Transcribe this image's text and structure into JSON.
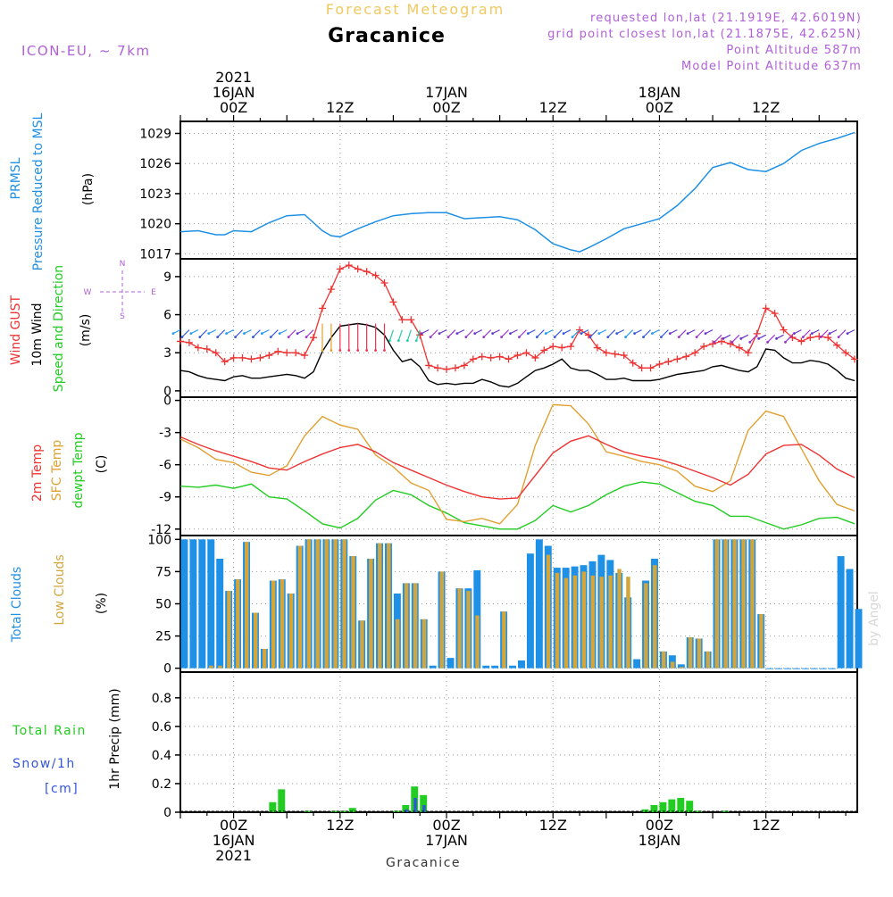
{
  "header": {
    "subtitle_top": "Forecast Meteogram",
    "location": "Gracanice",
    "model": "ICON-EU, ~ 7km",
    "requested": "requested lon,lat (21.1919E, 42.6019N)",
    "gridpoint": "grid point closest lon,lat (21.1875E, 42.625N)",
    "point_alt": "Point Altitude 587m",
    "model_alt": "Model Point Altitude 637m",
    "footer_location": "Gracanice",
    "watermark": "by Angel"
  },
  "time_axis": {
    "top_labels": [
      {
        "hour": 6,
        "lines": [
          "2021",
          "16JAN",
          "00Z"
        ]
      },
      {
        "hour": 18,
        "lines": [
          "12Z"
        ]
      },
      {
        "hour": 30,
        "lines": [
          "17JAN",
          "00Z"
        ]
      },
      {
        "hour": 42,
        "lines": [
          "12Z"
        ]
      },
      {
        "hour": 54,
        "lines": [
          "18JAN",
          "00Z"
        ]
      },
      {
        "hour": 66,
        "lines": [
          "12Z"
        ]
      }
    ],
    "bottom_labels": [
      {
        "hour": 6,
        "lines": [
          "00Z",
          "16JAN",
          "2021"
        ]
      },
      {
        "hour": 18,
        "lines": [
          "12Z"
        ]
      },
      {
        "hour": 30,
        "lines": [
          "00Z",
          "17JAN"
        ]
      },
      {
        "hour": 42,
        "lines": [
          "12Z"
        ]
      },
      {
        "hour": 54,
        "lines": [
          "00Z",
          "18JAN"
        ]
      },
      {
        "hour": 66,
        "lines": [
          "12Z"
        ]
      }
    ]
  },
  "colors": {
    "pressure": "#1e90e6",
    "gust": "#ee3333",
    "wind": "#000000",
    "temp": "#ee3333",
    "sfc": "#e0a030",
    "dewpt": "#22cc22",
    "total_cloud": "#1e90e6",
    "low_cloud": "#d4a53a",
    "rain": "#22cc22",
    "snow": "#3355dd",
    "header_purple": "#b060d8",
    "header_orange": "#f0c860"
  },
  "panels": [
    {
      "id": "pressure",
      "ylabels": [
        "PRMSL",
        "Pressure Reduced to MSL",
        "(hPa)"
      ]
    },
    {
      "id": "wind",
      "ylabels": [
        "Wind GUST",
        "10m Wind",
        "Speed and Direction",
        "(m/s)"
      ],
      "compass": {
        "n": "N",
        "s": "S",
        "w": "W",
        "e": "E"
      }
    },
    {
      "id": "temp",
      "ylabels": [
        "2m Temp",
        "SFC Temp",
        "dewpt Temp",
        "(C)"
      ]
    },
    {
      "id": "cloud",
      "ylabels": [
        "Total Clouds",
        "Low Clouds",
        "(%)"
      ]
    },
    {
      "id": "precip",
      "ylabels": [
        "Total Rain",
        "Snow/1h",
        "[cm]",
        "1hr Precip (mm)"
      ]
    }
  ],
  "chart_data": [
    {
      "type": "line",
      "id": "pressure",
      "ylabel": "(hPa)",
      "yticks": [
        1017,
        1020,
        1023,
        1026,
        1029
      ],
      "ylim": [
        1016.5,
        1030.2
      ],
      "grid": true,
      "series": [
        {
          "name": "PRMSL",
          "x": [
            0,
            2,
            4,
            5,
            6,
            8,
            10,
            12,
            14,
            16,
            17,
            18,
            20,
            22,
            24,
            26,
            28,
            30,
            32,
            34,
            36,
            38,
            40,
            42,
            44,
            45,
            46,
            48,
            50,
            52,
            54,
            56,
            58,
            60,
            62,
            64,
            66,
            68,
            70,
            72,
            74,
            76
          ],
          "y": [
            1019.2,
            1019.3,
            1018.9,
            1018.9,
            1019.3,
            1019.2,
            1020.1,
            1020.8,
            1020.9,
            1019.3,
            1018.8,
            1018.7,
            1019.5,
            1020.2,
            1020.8,
            1021.0,
            1021.1,
            1021.1,
            1020.5,
            1020.6,
            1020.7,
            1020.4,
            1019.4,
            1018.0,
            1017.4,
            1017.2,
            1017.6,
            1018.5,
            1019.5,
            1020.0,
            1020.5,
            1021.8,
            1023.5,
            1025.6,
            1026.1,
            1025.4,
            1025.2,
            1026.0,
            1027.3,
            1028.0,
            1028.5,
            1029.1
          ]
        }
      ]
    },
    {
      "type": "line",
      "id": "wind",
      "ylabel": "(m/s)",
      "yticks": [
        0,
        3,
        6,
        9
      ],
      "ylim": [
        -0.5,
        10.4
      ],
      "grid": true,
      "series": [
        {
          "name": "Wind GUST",
          "x": [
            0,
            1,
            2,
            3,
            4,
            5,
            6,
            7,
            8,
            9,
            10,
            11,
            12,
            13,
            14,
            15,
            16,
            17,
            18,
            19,
            20,
            21,
            22,
            23,
            24,
            25,
            26,
            27,
            28,
            29,
            30,
            31,
            32,
            33,
            34,
            35,
            36,
            37,
            38,
            39,
            40,
            41,
            42,
            43,
            44,
            45,
            46,
            47,
            48,
            49,
            50,
            51,
            52,
            53,
            54,
            55,
            56,
            57,
            58,
            59,
            60,
            61,
            62,
            63,
            64,
            65,
            66,
            67,
            68,
            69,
            70,
            71,
            72,
            73,
            74,
            75,
            76
          ],
          "y": [
            3.9,
            3.8,
            3.4,
            3.3,
            3.0,
            2.3,
            2.6,
            2.6,
            2.5,
            2.6,
            2.8,
            3.1,
            3.0,
            3.0,
            2.8,
            4.2,
            6.5,
            8.0,
            9.6,
            9.9,
            9.6,
            9.4,
            9.1,
            8.5,
            7.0,
            5.6,
            5.6,
            4.4,
            2.0,
            1.8,
            1.7,
            1.8,
            2.0,
            2.5,
            2.7,
            2.6,
            2.7,
            2.5,
            2.8,
            3.0,
            2.6,
            3.2,
            3.5,
            3.4,
            3.5,
            4.8,
            4.4,
            3.4,
            3.0,
            2.9,
            2.8,
            2.2,
            1.8,
            1.8,
            2.1,
            2.3,
            2.5,
            2.7,
            3.0,
            3.5,
            3.7,
            3.9,
            3.7,
            3.4,
            3.0,
            4.5,
            6.5,
            6.1,
            4.8,
            4.2,
            3.9,
            4.2,
            4.3,
            4.2,
            3.6,
            3.0,
            2.5
          ]
        },
        {
          "name": "10m Wind",
          "x": [
            0,
            1,
            2,
            3,
            4,
            5,
            6,
            7,
            8,
            9,
            10,
            11,
            12,
            13,
            14,
            15,
            16,
            17,
            18,
            19,
            20,
            21,
            22,
            23,
            24,
            25,
            26,
            27,
            28,
            29,
            30,
            31,
            32,
            33,
            34,
            35,
            36,
            37,
            38,
            39,
            40,
            41,
            42,
            43,
            44,
            45,
            46,
            47,
            48,
            49,
            50,
            51,
            52,
            53,
            54,
            55,
            56,
            57,
            58,
            59,
            60,
            61,
            62,
            63,
            64,
            65,
            66,
            67,
            68,
            69,
            70,
            71,
            72,
            73,
            74,
            75,
            76
          ],
          "y": [
            1.6,
            1.5,
            1.2,
            1.0,
            0.9,
            0.8,
            1.1,
            1.2,
            1.0,
            1.0,
            1.1,
            1.2,
            1.3,
            1.2,
            1.0,
            1.5,
            3.1,
            4.2,
            5.1,
            5.2,
            5.3,
            5.2,
            5.0,
            4.4,
            3.2,
            2.3,
            2.5,
            1.9,
            0.8,
            0.5,
            0.6,
            0.5,
            0.6,
            0.6,
            0.9,
            0.7,
            0.4,
            0.3,
            0.6,
            1.1,
            1.6,
            1.8,
            2.1,
            2.5,
            1.8,
            1.6,
            1.6,
            1.3,
            0.9,
            0.9,
            1.0,
            0.8,
            0.8,
            0.8,
            0.9,
            1.1,
            1.3,
            1.4,
            1.5,
            1.6,
            1.9,
            2.0,
            1.8,
            1.6,
            1.5,
            1.9,
            3.3,
            3.2,
            2.6,
            2.2,
            2.2,
            2.4,
            2.3,
            2.1,
            1.6,
            1.0,
            0.8
          ]
        }
      ]
    },
    {
      "type": "line",
      "id": "temp",
      "ylabel": "(C)",
      "yticks": [
        0,
        -3,
        -6,
        -9,
        -12
      ],
      "ylim": [
        -12.6,
        0.3
      ],
      "grid": true,
      "series": [
        {
          "name": "2m Temp",
          "x": [
            0,
            2,
            4,
            6,
            8,
            10,
            12,
            14,
            16,
            18,
            20,
            22,
            24,
            26,
            28,
            30,
            32,
            34,
            36,
            38,
            40,
            42,
            44,
            46,
            48,
            50,
            52,
            54,
            56,
            58,
            60,
            62,
            64,
            66,
            68,
            70,
            72,
            74,
            76
          ],
          "y": [
            -3.4,
            -4.1,
            -4.7,
            -5.2,
            -5.7,
            -6.3,
            -6.5,
            -5.7,
            -5.0,
            -4.4,
            -4.1,
            -4.8,
            -5.8,
            -6.5,
            -7.2,
            -7.9,
            -8.5,
            -9.0,
            -9.2,
            -9.1,
            -7.0,
            -4.9,
            -3.8,
            -3.3,
            -4.1,
            -4.8,
            -5.2,
            -5.5,
            -6.0,
            -6.6,
            -7.2,
            -7.9,
            -6.9,
            -5.0,
            -4.2,
            -4.1,
            -5.1,
            -6.4,
            -7.2
          ]
        },
        {
          "name": "SFC Temp",
          "x": [
            0,
            2,
            4,
            6,
            8,
            10,
            12,
            14,
            16,
            18,
            20,
            22,
            24,
            26,
            28,
            30,
            32,
            34,
            36,
            38,
            40,
            42,
            44,
            46,
            48,
            50,
            52,
            54,
            56,
            58,
            60,
            62,
            64,
            66,
            68,
            70,
            72,
            74,
            76
          ],
          "y": [
            -3.6,
            -4.4,
            -5.5,
            -5.8,
            -6.7,
            -7.0,
            -6.1,
            -3.3,
            -1.5,
            -2.3,
            -2.7,
            -5.1,
            -6.2,
            -7.7,
            -8.4,
            -11.1,
            -11.3,
            -11.0,
            -11.5,
            -9.7,
            -4.2,
            -0.4,
            -0.5,
            -2.2,
            -4.8,
            -5.2,
            -5.7,
            -6.0,
            -6.6,
            -8.0,
            -8.5,
            -7.5,
            -2.8,
            -1.0,
            -1.5,
            -4.5,
            -7.5,
            -9.7,
            -10.3
          ]
        },
        {
          "name": "dewpt Temp",
          "x": [
            0,
            2,
            4,
            6,
            8,
            10,
            12,
            14,
            16,
            18,
            20,
            22,
            24,
            26,
            28,
            30,
            32,
            34,
            36,
            38,
            40,
            42,
            44,
            46,
            48,
            50,
            52,
            54,
            56,
            58,
            60,
            62,
            64,
            66,
            68,
            70,
            72,
            74,
            76
          ],
          "y": [
            -8.0,
            -8.1,
            -7.9,
            -8.2,
            -7.8,
            -9.0,
            -9.2,
            -10.3,
            -11.5,
            -11.9,
            -11.0,
            -9.3,
            -8.4,
            -8.8,
            -9.8,
            -10.5,
            -11.4,
            -11.7,
            -12.0,
            -12.0,
            -11.2,
            -9.8,
            -10.4,
            -9.8,
            -8.8,
            -8.0,
            -7.6,
            -7.8,
            -8.6,
            -9.4,
            -9.8,
            -10.8,
            -10.8,
            -11.4,
            -12.0,
            -11.6,
            -11.0,
            -10.9,
            -11.5
          ]
        }
      ]
    },
    {
      "type": "bar",
      "id": "cloud",
      "ylabel": "(%)",
      "yticks": [
        0,
        25,
        50,
        75,
        100
      ],
      "ylim": [
        -3,
        103
      ],
      "grid": true,
      "x_start": 0,
      "series": [
        {
          "name": "Total Clouds",
          "values": [
            100,
            100,
            100,
            100,
            85,
            60,
            69,
            98,
            43,
            15,
            68,
            69,
            58,
            95,
            100,
            100,
            100,
            100,
            100,
            87,
            37,
            85,
            97,
            97,
            58,
            66,
            66,
            38,
            2,
            75,
            8,
            62,
            62,
            76,
            2,
            2,
            44,
            2,
            6,
            89,
            100,
            95,
            78,
            78,
            79,
            80,
            83,
            88,
            84,
            74,
            55,
            7,
            68,
            85,
            13,
            10,
            3,
            24,
            23,
            13,
            100,
            100,
            100,
            100,
            100,
            42,
            0,
            0,
            0,
            0,
            0,
            0,
            0,
            0,
            87,
            77,
            46
          ]
        },
        {
          "name": "Low Clouds",
          "values": [
            0,
            0,
            0,
            2,
            2,
            60,
            69,
            98,
            43,
            15,
            68,
            69,
            58,
            95,
            100,
            100,
            100,
            100,
            100,
            87,
            37,
            85,
            97,
            97,
            38,
            66,
            66,
            38,
            0,
            75,
            0,
            62,
            60,
            41,
            0,
            0,
            44,
            0,
            0,
            0,
            0,
            88,
            74,
            70,
            72,
            75,
            72,
            71,
            72,
            77,
            71,
            0,
            66,
            80,
            13,
            5,
            1,
            24,
            23,
            13,
            100,
            100,
            100,
            100,
            100,
            42,
            0,
            0,
            0,
            0,
            0,
            0,
            0,
            0,
            0,
            0,
            0
          ]
        }
      ]
    },
    {
      "type": "bar",
      "id": "precip",
      "ylabel": "1hr Precip (mm)",
      "yticks": [
        0,
        0.2,
        0.4,
        0.6,
        0.8
      ],
      "ylim": [
        0,
        0.98
      ],
      "grid": true,
      "series": [
        {
          "name": "Total Rain",
          "x": [
            10,
            11,
            14,
            17,
            18,
            19,
            24,
            25,
            26,
            27,
            52,
            53,
            54,
            55,
            56,
            57,
            58,
            61
          ],
          "values": [
            0.07,
            0.16,
            0.01,
            0.01,
            0.01,
            0.03,
            0.01,
            0.05,
            0.18,
            0.12,
            0.02,
            0.05,
            0.07,
            0.09,
            0.1,
            0.08,
            0.01,
            0.01
          ]
        },
        {
          "name": "Snow/1h",
          "x": [
            25,
            26,
            27
          ],
          "values": [
            0.02,
            0.1,
            0.05
          ]
        }
      ]
    }
  ]
}
